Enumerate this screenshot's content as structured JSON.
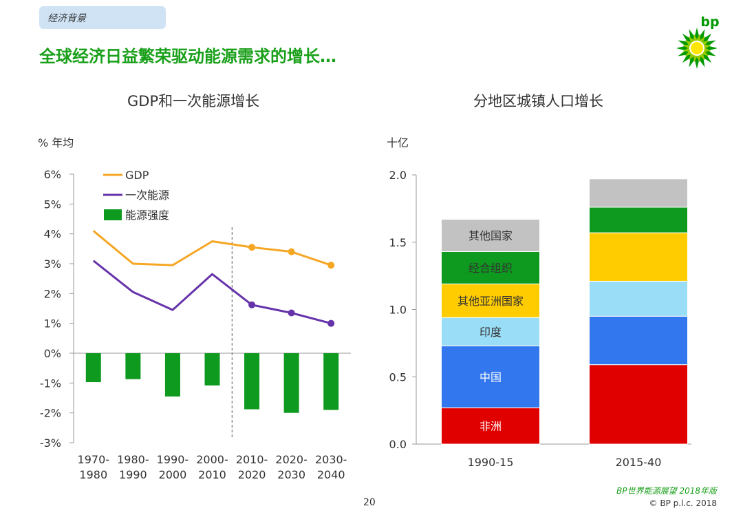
{
  "header": {
    "section_tag": "经济背景",
    "headline": "全球经济日益繁荣驱动能源需求的增长…"
  },
  "logo": {
    "text": "bp",
    "icon": "helios-sun-logo-icon",
    "colors": [
      "#009900",
      "#99cc00",
      "#ffe600"
    ]
  },
  "footer": {
    "brand": "BP世界能源展望 2018年版",
    "copyright": "© BP p.l.c. 2018",
    "page_number": "20"
  },
  "chart_data": [
    {
      "type": "line",
      "title": "GDP和一次能源增长",
      "ylabel": "% 年均",
      "ylim": [
        -3,
        6
      ],
      "yticks": [
        "6%",
        "5%",
        "4%",
        "3%",
        "2%",
        "1%",
        "0%",
        "-1%",
        "-2%",
        "-3%"
      ],
      "categories": [
        [
          "1970-",
          "1980"
        ],
        [
          "1980-",
          "1990"
        ],
        [
          "1990-",
          "2000"
        ],
        [
          "2000-",
          "2010"
        ],
        [
          "2010-",
          "2020"
        ],
        [
          "2020-",
          "2030"
        ],
        [
          "2030-",
          "2040"
        ]
      ],
      "projection_starts_after_index": 3,
      "series": [
        {
          "name": "GDP",
          "kind": "line",
          "color": "#f5a623",
          "values": [
            4.1,
            3.0,
            2.95,
            3.75,
            3.55,
            3.4,
            2.95
          ]
        },
        {
          "name": "一次能源",
          "kind": "line",
          "color": "#6633aa",
          "values": [
            3.1,
            2.05,
            1.45,
            2.65,
            1.62,
            1.35,
            1.0
          ]
        },
        {
          "name": "能源强度",
          "kind": "bar",
          "color": "#0e9a1e",
          "values": [
            -0.97,
            -0.87,
            -1.45,
            -1.08,
            -1.88,
            -2.0,
            -1.9
          ]
        }
      ],
      "legend_position": "top-left"
    },
    {
      "type": "bar",
      "stacked": true,
      "title": "分地区城镇人口增长",
      "ylabel": "十亿",
      "ylim": [
        0,
        2.0
      ],
      "yticks": [
        "2.0",
        "1.5",
        "1.0",
        "0.5",
        "0.0"
      ],
      "categories": [
        "1990-15",
        "2015-40"
      ],
      "series": [
        {
          "name": "非洲",
          "color": "#e00000",
          "label_color": "#ffffff",
          "values": [
            0.27,
            0.59
          ]
        },
        {
          "name": "中国",
          "color": "#3377ee",
          "label_color": "#ffffff",
          "values": [
            0.46,
            0.36
          ]
        },
        {
          "name": "印度",
          "color": "#99ddf7",
          "label_color": "#333333",
          "values": [
            0.21,
            0.26
          ]
        },
        {
          "name": "其他亚洲国家",
          "color": "#ffcc00",
          "label_color": "#333333",
          "values": [
            0.25,
            0.36
          ]
        },
        {
          "name": "经合组织",
          "color": "#0e9a1e",
          "label_color": "#333333",
          "values": [
            0.24,
            0.19
          ]
        },
        {
          "name": "其他国家",
          "color": "#c2c2c2",
          "label_color": "#333333",
          "values": [
            0.24,
            0.21
          ]
        }
      ],
      "segment_labels_on_category_index": 0
    }
  ]
}
